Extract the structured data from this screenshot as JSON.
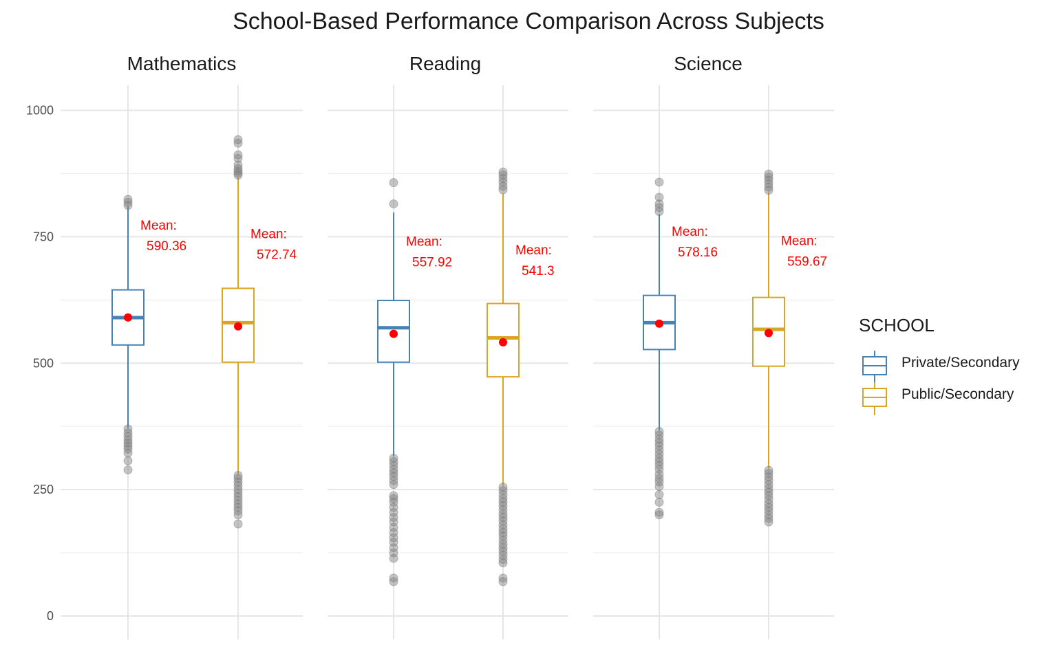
{
  "chart_data": {
    "type": "boxplot",
    "title": "School-Based Performance Comparison Across Subjects",
    "ylim": [
      0,
      1000
    ],
    "y_ticks": [
      0,
      250,
      500,
      750,
      1000
    ],
    "grid": true,
    "legend": {
      "title": "SCHOOL",
      "placement": "right",
      "entries": [
        {
          "label": "Private/Secondary",
          "color": "#4682b4"
        },
        {
          "label": "Public/Secondary",
          "color": "#daa520"
        }
      ]
    },
    "mean_color": "#ff0000",
    "outlier_color": "#7f7f7f",
    "facets": [
      {
        "name": "Mathematics",
        "groups": [
          {
            "school": "Private/Secondary",
            "q1": 536,
            "median": 590,
            "q3": 645,
            "whisker_low": 372,
            "whisker_high": 810,
            "mean": 590.36,
            "mean_label": [
              "Mean:",
              "590.36"
            ],
            "outliers": [
              824,
              818,
              812,
              370,
              362,
              355,
              348,
              342,
              336,
              330,
              322,
              307,
              289
            ]
          },
          {
            "school": "Public/Secondary",
            "q1": 502,
            "median": 580,
            "q3": 648,
            "whisker_low": 280,
            "whisker_high": 868,
            "mean": 572.74,
            "mean_label": [
              "Mean:",
              "572.74"
            ],
            "outliers": [
              942,
              935,
              912,
              905,
              892,
              885,
              880,
              876,
              872,
              278,
              272,
              265,
              258,
              250,
              243,
              236,
              229,
              222,
              215,
              208,
              200,
              182
            ]
          }
        ]
      },
      {
        "name": "Reading",
        "groups": [
          {
            "school": "Private/Secondary",
            "q1": 502,
            "median": 570,
            "q3": 624,
            "whisker_low": 316,
            "whisker_high": 798,
            "mean": 557.92,
            "mean_label": [
              "Mean:",
              "557.92"
            ],
            "outliers": [
              857,
              815,
              312,
              305,
              298,
              290,
              283,
              276,
              268,
              260,
              238,
              232,
              225,
              215,
              205,
              195,
              186,
              175,
              165,
              155,
              146,
              135,
              125,
              114,
              75,
              68
            ]
          },
          {
            "school": "Public/Secondary",
            "q1": 473,
            "median": 550,
            "q3": 618,
            "whisker_low": 258,
            "whisker_high": 835,
            "mean": 541.3,
            "mean_label": [
              "Mean:",
              "541.3"
            ],
            "outliers": [
              878,
              872,
              865,
              858,
              850,
              843,
              255,
              248,
              240,
              232,
              225,
              218,
              210,
              202,
              195,
              188,
              180,
              172,
              165,
              158,
              150,
              142,
              135,
              128,
              120,
              112,
              105,
              75,
              68
            ]
          }
        ]
      },
      {
        "name": "Science",
        "groups": [
          {
            "school": "Private/Secondary",
            "q1": 527,
            "median": 580,
            "q3": 634,
            "whisker_low": 368,
            "whisker_high": 795,
            "mean": 578.16,
            "mean_label": [
              "Mean:",
              "578.16"
            ],
            "outliers": [
              858,
              828,
              815,
              808,
              800,
              365,
              358,
              350,
              343,
              336,
              328,
              320,
              312,
              305,
              298,
              290,
              280,
              272,
              265,
              256,
              240,
              225,
              205,
              200
            ]
          },
          {
            "school": "Public/Secondary",
            "q1": 494,
            "median": 567,
            "q3": 630,
            "whisker_low": 292,
            "whisker_high": 838,
            "mean": 559.67,
            "mean_label": [
              "Mean:",
              "559.67"
            ],
            "outliers": [
              874,
              868,
              862,
              855,
              848,
              842,
              288,
              282,
              275,
              268,
              260,
              252,
              245,
              238,
              230,
              222,
              215,
              208,
              200,
              193,
              186
            ]
          }
        ]
      }
    ]
  }
}
